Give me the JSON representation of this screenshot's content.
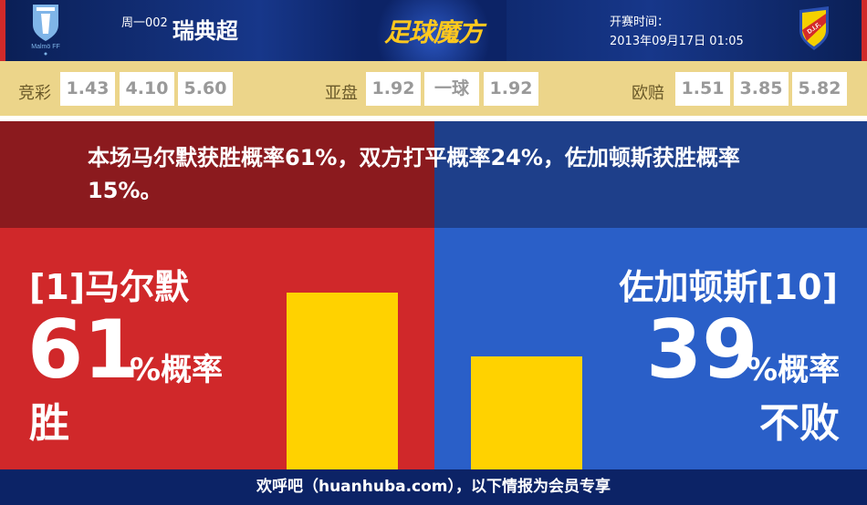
{
  "header": {
    "match_code": "周一002",
    "league": "瑞典超",
    "logo_text": "足球魔方",
    "time_label": "开赛时间：",
    "time_value": "2013年09月17日 01:05",
    "home_crest_text": "Malmö FF",
    "away_crest_text": "D.I.F."
  },
  "odds": {
    "jc_label": "竞彩",
    "jc": [
      "1.43",
      "4.10",
      "5.60"
    ],
    "yp_label": "亚盘",
    "yp": [
      "1.92",
      "一球",
      "1.92"
    ],
    "oz_label": "欧赔",
    "oz": [
      "1.51",
      "3.85",
      "5.82"
    ]
  },
  "summary": "本场马尔默获胜概率61%，双方打平概率24%，佐加顿斯获胜概率15%。",
  "home": {
    "team": "[1]马尔默",
    "percent": 61,
    "percent_text": "61",
    "percent_label": "%概率",
    "result": "胜"
  },
  "away": {
    "team": "佐加顿斯[10]",
    "percent": 39,
    "percent_text": "39",
    "percent_label": "%概率",
    "result": "不败"
  },
  "footer": "欢呼吧（huanhuba.com），以下情报为会员专享",
  "colors": {
    "home": "#d0282a",
    "away": "#2a5fc8",
    "bar": "#ffd200"
  }
}
